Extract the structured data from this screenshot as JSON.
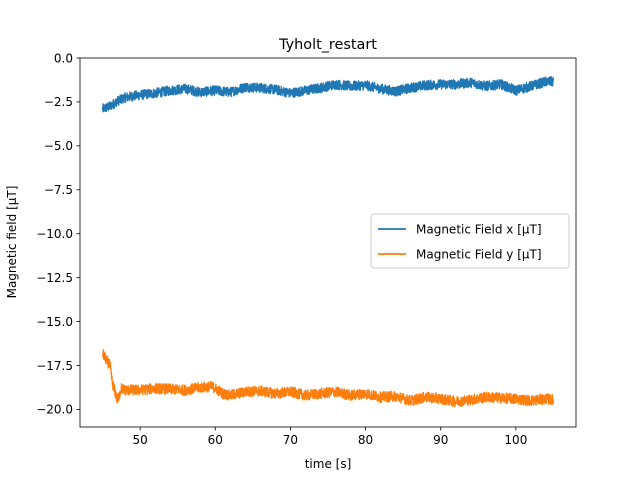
{
  "chart_data": {
    "type": "line",
    "title": "Tyholt_restart",
    "xlabel": "time [s]",
    "ylabel": "Magnetic field [μT]",
    "xlim": [
      42.0,
      108.0
    ],
    "ylim": [
      -21.0,
      0.0
    ],
    "xticks": [
      50,
      60,
      70,
      80,
      90,
      100
    ],
    "yticks": [
      0.0,
      -2.5,
      -5.0,
      -7.5,
      -10.0,
      -12.5,
      -15.0,
      -17.5,
      -20.0
    ],
    "xtick_labels": [
      "50",
      "60",
      "70",
      "80",
      "90",
      "100"
    ],
    "ytick_labels": [
      "0.0",
      "−2.5",
      "−5.0",
      "−7.5",
      "−10.0",
      "−12.5",
      "−15.0",
      "−17.5",
      "−20.0"
    ],
    "grid": false,
    "legend_position": "center-right",
    "series": [
      {
        "name": "Magnetic Field x [μT]",
        "color": "#1f77b4",
        "noise_amplitude": 0.28,
        "x": [
          45,
          46,
          47,
          48,
          50,
          52,
          54,
          56,
          58,
          60,
          62,
          64,
          66,
          68,
          70,
          72,
          74,
          76,
          78,
          80,
          82,
          84,
          86,
          88,
          90,
          92,
          94,
          96,
          98,
          100,
          102,
          104,
          105
        ],
        "y": [
          -2.9,
          -2.75,
          -2.45,
          -2.25,
          -2.1,
          -2.0,
          -1.85,
          -1.75,
          -1.95,
          -1.85,
          -1.95,
          -1.65,
          -1.7,
          -1.8,
          -2.0,
          -1.85,
          -1.7,
          -1.5,
          -1.6,
          -1.55,
          -1.75,
          -1.9,
          -1.7,
          -1.55,
          -1.5,
          -1.5,
          -1.4,
          -1.6,
          -1.5,
          -1.85,
          -1.6,
          -1.35,
          -1.35
        ]
      },
      {
        "name": "Magnetic Field y [μT]",
        "color": "#ff7f0e",
        "noise_amplitude": 0.3,
        "x": [
          45,
          45.5,
          46,
          46.3,
          46.6,
          47,
          47.5,
          48,
          50,
          52,
          54,
          56,
          58,
          59.5,
          60,
          61,
          62,
          64,
          66,
          68,
          70,
          72,
          74,
          76,
          78,
          80,
          82,
          84,
          86,
          88,
          90,
          92,
          94,
          96,
          98,
          100,
          102,
          104,
          105
        ],
        "y": [
          -16.8,
          -17.2,
          -17.5,
          -18.5,
          -18.9,
          -19.5,
          -18.8,
          -18.9,
          -18.9,
          -18.8,
          -18.85,
          -18.9,
          -18.75,
          -18.7,
          -18.8,
          -19.1,
          -19.2,
          -19.0,
          -18.95,
          -19.1,
          -19.0,
          -19.2,
          -19.1,
          -19.0,
          -19.2,
          -19.1,
          -19.3,
          -19.25,
          -19.5,
          -19.3,
          -19.4,
          -19.55,
          -19.45,
          -19.3,
          -19.35,
          -19.4,
          -19.5,
          -19.4,
          -19.45
        ]
      }
    ]
  }
}
